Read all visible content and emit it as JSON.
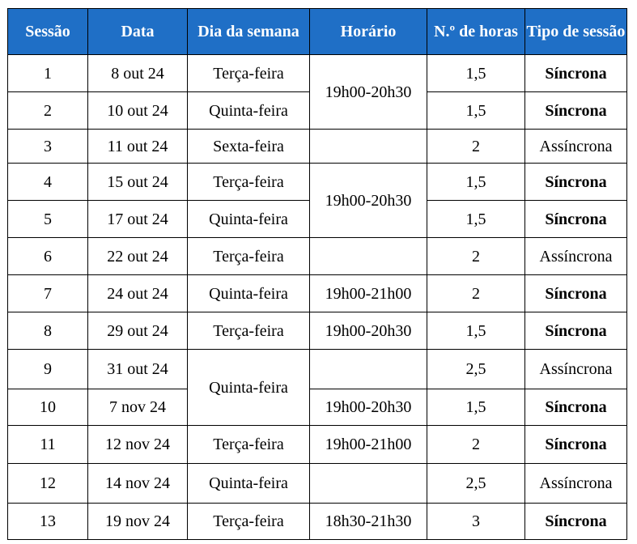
{
  "headers": [
    "Sessão",
    "Data",
    "Dia da semana",
    "Horário",
    "N.º de horas",
    "Tipo de sessão"
  ],
  "rows": [
    {
      "sessao": "1",
      "data": "8 out 24",
      "dia": "Terça-feira",
      "horario": "19h00-20h30",
      "horas": "1,5",
      "tipo": "Síncrona"
    },
    {
      "sessao": "2",
      "data": "10 out 24",
      "dia": "Quinta-feira",
      "horario": "",
      "horas": "1,5",
      "tipo": "Síncrona"
    },
    {
      "sessao": "3",
      "data": "11 out 24",
      "dia": "Sexta-feira",
      "horario": "",
      "horas": "2",
      "tipo": "Assíncrona"
    },
    {
      "sessao": "4",
      "data": "15 out 24",
      "dia": "Terça-feira",
      "horario": "19h00-20h30",
      "horas": "1,5",
      "tipo": "Síncrona"
    },
    {
      "sessao": "5",
      "data": "17 out 24",
      "dia": "Quinta-feira",
      "horario": "",
      "horas": "1,5",
      "tipo": "Síncrona"
    },
    {
      "sessao": "6",
      "data": "22 out 24",
      "dia": "Terça-feira",
      "horario": "",
      "horas": "2",
      "tipo": "Assíncrona"
    },
    {
      "sessao": "7",
      "data": "24 out 24",
      "dia": "Quinta-feira",
      "horario": "19h00-21h00",
      "horas": "2",
      "tipo": "Síncrona"
    },
    {
      "sessao": "8",
      "data": "29 out 24",
      "dia": "Terça-feira",
      "horario": "19h00-20h30",
      "horas": "1,5",
      "tipo": "Síncrona"
    },
    {
      "sessao": "9",
      "data": "31 out 24",
      "dia": "Quinta-feira",
      "horario": "",
      "horas": "2,5",
      "tipo": "Assíncrona"
    },
    {
      "sessao": "10",
      "data": "7 nov 24",
      "dia": "",
      "horario": "19h00-20h30",
      "horas": "1,5",
      "tipo": "Síncrona"
    },
    {
      "sessao": "11",
      "data": "12 nov 24",
      "dia": "Terça-feira",
      "horario": "19h00-21h00",
      "horas": "2",
      "tipo": "Síncrona"
    },
    {
      "sessao": "12",
      "data": "14 nov 24",
      "dia": "Quinta-feira",
      "horario": "",
      "horas": "2,5",
      "tipo": "Assíncrona"
    },
    {
      "sessao": "13",
      "data": "19 nov 24",
      "dia": "Terça-feira",
      "horario": "18h30-21h30",
      "horas": "3",
      "tipo": "Síncrona"
    }
  ]
}
